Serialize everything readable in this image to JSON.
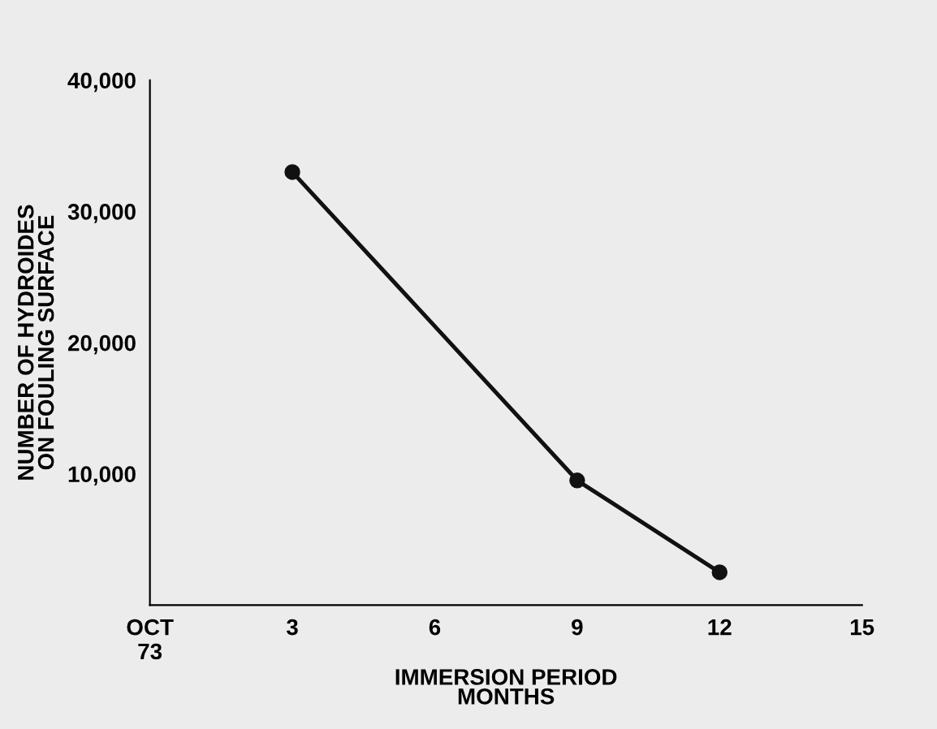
{
  "chart_data": {
    "type": "line",
    "xlabel": "IMMERSION PERIOD\nMONTHS",
    "ylabel": "NUMBER OF HYDROIDES\nON FOULING SURFACE",
    "x": [
      3,
      9,
      12
    ],
    "series": [
      {
        "color": "#111111",
        "values": [
          33000,
          9500,
          2500
        ]
      }
    ],
    "xlim": [
      0,
      15
    ],
    "xticks": [
      {
        "value": 0,
        "label": "OCT\n73"
      },
      3,
      6,
      9,
      12,
      15
    ],
    "ylim": [
      0,
      40000
    ],
    "yticks": [
      {
        "value": 10000,
        "label": "10,000"
      },
      {
        "value": 20000,
        "label": "20,000"
      },
      {
        "value": 30000,
        "label": "30,000"
      },
      {
        "value": 40000,
        "label": "40,000"
      }
    ],
    "marker": "circle",
    "line_style": "solid",
    "grid": false,
    "legend": false
  }
}
